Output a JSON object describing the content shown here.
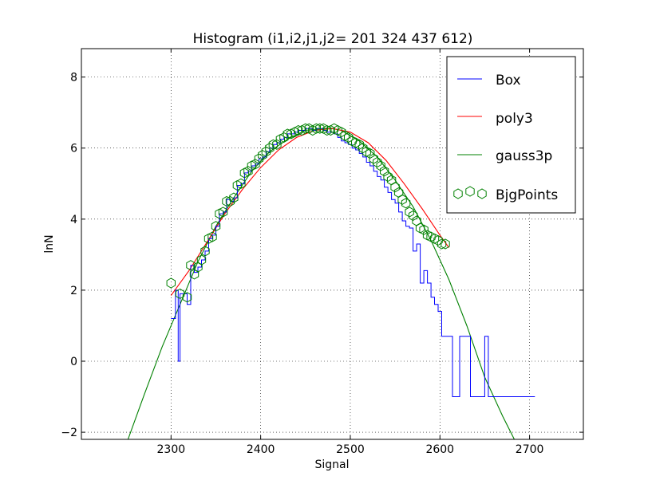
{
  "chart_data": {
    "type": "line",
    "title": "Histogram (i1,i2,j1,j2=  201  324  437  612)",
    "xlabel": "Signal",
    "ylabel": "lnN",
    "xlim": [
      2200,
      2760
    ],
    "ylim": [
      -2.2,
      8.8
    ],
    "xticks": [
      2300,
      2400,
      2500,
      2600,
      2700
    ],
    "yticks": [
      -2,
      0,
      2,
      4,
      6,
      8
    ],
    "xtick_labels": [
      "2300",
      "2400",
      "2500",
      "2600",
      "2700"
    ],
    "ytick_labels": [
      "−2",
      "0",
      "2",
      "4",
      "6",
      "8"
    ],
    "grid": true,
    "legend_position": "top-right",
    "series": [
      {
        "name": "Box",
        "kind": "step",
        "color": "#0000ff",
        "x": [
          2300,
          2305,
          2308,
          2310,
          2314,
          2318,
          2322,
          2326,
          2330,
          2334,
          2338,
          2342,
          2346,
          2350,
          2354,
          2358,
          2362,
          2366,
          2370,
          2374,
          2378,
          2382,
          2386,
          2390,
          2394,
          2398,
          2402,
          2406,
          2410,
          2414,
          2418,
          2422,
          2426,
          2430,
          2434,
          2438,
          2442,
          2446,
          2450,
          2454,
          2458,
          2462,
          2466,
          2470,
          2474,
          2478,
          2482,
          2486,
          2490,
          2494,
          2498,
          2502,
          2506,
          2510,
          2514,
          2518,
          2522,
          2526,
          2530,
          2534,
          2538,
          2542,
          2546,
          2550,
          2554,
          2558,
          2562,
          2566,
          2570,
          2574,
          2578,
          2582,
          2586,
          2590,
          2594,
          2598,
          2602,
          2606,
          2610,
          2614,
          2618,
          2622,
          2626,
          2630,
          2634,
          2638,
          2642,
          2646,
          2650,
          2654,
          2658,
          2662,
          2666,
          2670,
          2674,
          2678,
          2682,
          2686,
          2690,
          2694,
          2698,
          2702,
          2706
        ],
        "y": [
          1.2,
          2.0,
          0.0,
          1.9,
          1.9,
          1.6,
          2.7,
          2.5,
          2.65,
          2.85,
          3.1,
          3.45,
          3.55,
          3.8,
          4.15,
          4.2,
          4.55,
          4.5,
          4.6,
          4.95,
          5.0,
          5.3,
          5.35,
          5.5,
          5.55,
          5.7,
          5.75,
          5.9,
          6.0,
          6.1,
          6.15,
          6.25,
          6.3,
          6.4,
          6.4,
          6.45,
          6.5,
          6.5,
          6.55,
          6.55,
          6.5,
          6.55,
          6.55,
          6.5,
          6.45,
          6.45,
          6.4,
          6.3,
          6.2,
          6.15,
          6.1,
          6.0,
          5.95,
          5.85,
          5.75,
          5.6,
          5.5,
          5.35,
          5.2,
          5.1,
          4.9,
          4.75,
          4.55,
          4.45,
          4.2,
          3.95,
          3.8,
          3.75,
          3.1,
          3.3,
          2.2,
          2.55,
          2.2,
          1.8,
          1.6,
          1.4,
          0.7,
          0.7,
          0.7,
          -1.0,
          -1.0,
          0.7,
          0.7,
          0.7,
          -1.0,
          -1.0,
          -1.0,
          -1.0,
          0.7,
          -1.0,
          -1.0,
          -1.0,
          -1.0,
          -1.0,
          -1.0,
          -1.0,
          -1.0,
          -1.0,
          -1.0,
          -1.0,
          -1.0,
          -1.0,
          -1.0
        ]
      },
      {
        "name": "poly3",
        "kind": "line",
        "color": "#ff0000",
        "x": [
          2300,
          2320,
          2340,
          2360,
          2380,
          2400,
          2420,
          2440,
          2460,
          2480,
          2500,
          2520,
          2540,
          2560,
          2580,
          2600,
          2610
        ],
        "y": [
          1.85,
          2.55,
          3.35,
          4.15,
          4.85,
          5.45,
          5.95,
          6.3,
          6.5,
          6.55,
          6.45,
          6.15,
          5.65,
          5.0,
          4.3,
          3.55,
          3.2
        ]
      },
      {
        "name": "gauss3p",
        "kind": "line",
        "color": "#008000",
        "x": [
          2252,
          2270,
          2290,
          2310,
          2330,
          2350,
          2370,
          2390,
          2410,
          2430,
          2450,
          2470,
          2480,
          2490,
          2510,
          2530,
          2550,
          2570,
          2590,
          2610,
          2630,
          2650,
          2670,
          2683
        ],
        "y": [
          -2.2,
          -0.95,
          0.4,
          1.6,
          2.8,
          3.8,
          4.6,
          5.35,
          5.9,
          6.25,
          6.5,
          6.55,
          6.55,
          6.5,
          6.2,
          5.75,
          5.1,
          4.35,
          3.4,
          2.3,
          1.0,
          -0.45,
          -1.55,
          -2.2
        ]
      },
      {
        "name": "BjgPoints",
        "kind": "scatter",
        "marker": "hexagon",
        "color": "#008000",
        "x": [
          2300,
          2310,
          2318,
          2322,
          2326,
          2330,
          2334,
          2338,
          2342,
          2346,
          2350,
          2354,
          2358,
          2362,
          2366,
          2370,
          2374,
          2378,
          2382,
          2386,
          2390,
          2394,
          2398,
          2402,
          2406,
          2410,
          2414,
          2418,
          2422,
          2426,
          2430,
          2434,
          2438,
          2442,
          2446,
          2450,
          2454,
          2458,
          2462,
          2466,
          2470,
          2474,
          2478,
          2482,
          2486,
          2490,
          2494,
          2498,
          2502,
          2506,
          2510,
          2514,
          2518,
          2522,
          2526,
          2530,
          2534,
          2538,
          2542,
          2546,
          2550,
          2554,
          2558,
          2562,
          2566,
          2570,
          2574,
          2578,
          2582,
          2586,
          2590,
          2594,
          2598,
          2602,
          2606
        ],
        "y": [
          2.2,
          1.9,
          1.8,
          2.7,
          2.45,
          2.65,
          2.85,
          3.1,
          3.45,
          3.5,
          3.8,
          4.15,
          4.2,
          4.5,
          4.5,
          4.6,
          4.95,
          5.0,
          5.3,
          5.35,
          5.5,
          5.55,
          5.7,
          5.8,
          5.9,
          6.0,
          6.1,
          6.1,
          6.25,
          6.3,
          6.4,
          6.4,
          6.45,
          6.5,
          6.5,
          6.55,
          6.55,
          6.5,
          6.55,
          6.55,
          6.55,
          6.5,
          6.5,
          6.55,
          6.5,
          6.45,
          6.35,
          6.3,
          6.2,
          6.15,
          6.1,
          6.0,
          5.9,
          5.85,
          5.7,
          5.6,
          5.5,
          5.35,
          5.2,
          5.1,
          4.9,
          4.75,
          4.55,
          4.45,
          4.2,
          4.1,
          3.95,
          3.75,
          3.7,
          3.55,
          3.5,
          3.45,
          3.4,
          3.3,
          3.3
        ]
      }
    ]
  }
}
